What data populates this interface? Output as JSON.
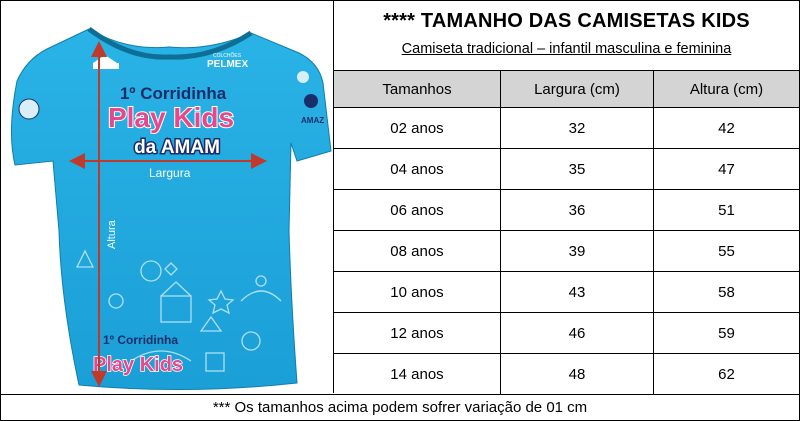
{
  "header": {
    "title": "**** TAMANHO DAS CAMISETAS KIDS",
    "subtitle": "Camiseta tradicional – infantil masculina e feminina"
  },
  "table": {
    "columns": [
      "Tamanhos",
      "Largura (cm)",
      "Altura (cm)"
    ],
    "rows": [
      [
        "02 anos",
        "32",
        "42"
      ],
      [
        "04 anos",
        "35",
        "47"
      ],
      [
        "06 anos",
        "36",
        "51"
      ],
      [
        "08 anos",
        "39",
        "55"
      ],
      [
        "10 anos",
        "43",
        "58"
      ],
      [
        "12 anos",
        "46",
        "59"
      ],
      [
        "14 anos",
        "48",
        "62"
      ]
    ]
  },
  "shirt": {
    "event_line1": "1º Corridinha",
    "event_line2": "Play Kids",
    "event_line3": "da AMAM",
    "bottom_line1": "1º Corridinha",
    "bottom_line2": "Play Kids",
    "sponsor": "PELMEX",
    "sponsor_small": "COLCHÕES",
    "sleeve_text": "AMAZ",
    "width_label": "Largura",
    "height_label": "Altura",
    "colors": {
      "shirt": "#1ba7dc",
      "pink": "#e8478b",
      "arrow": "#c0392b",
      "navy": "#1a2d6b"
    }
  },
  "footer": {
    "note": "*** Os tamanhos acima podem sofrer variação de 01 cm"
  }
}
